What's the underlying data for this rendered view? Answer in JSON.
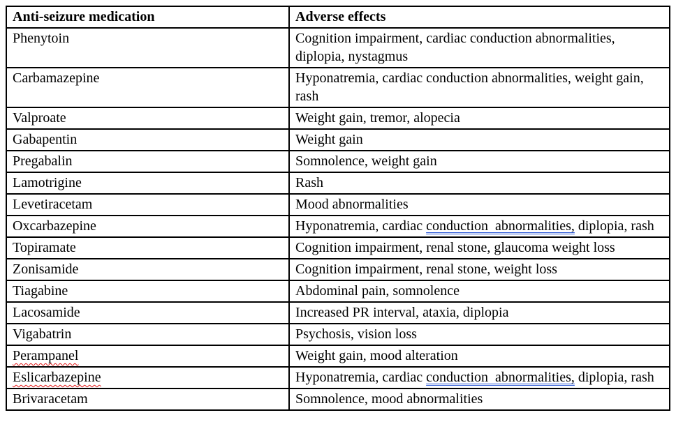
{
  "colors": {
    "background": "#ffffff",
    "text": "#000000",
    "table_border": "#000000",
    "spell_underline": "#e31212",
    "grammar_underline": "#2f5bd7"
  },
  "table": {
    "columns": [
      "Anti-seizure medication",
      "Adverse effects"
    ],
    "rows": [
      {
        "medication": {
          "text": "Phenytoin",
          "spell_error": false
        },
        "effects": [
          {
            "text": "Cognition impairment, cardiac conduction abnormalities, diplopia, nystagmus"
          }
        ]
      },
      {
        "medication": {
          "text": "Carbamazepine",
          "spell_error": false
        },
        "effects": [
          {
            "text": "Hyponatremia, cardiac conduction abnormalities, weight gain, rash"
          }
        ]
      },
      {
        "medication": {
          "text": "Valproate",
          "spell_error": false
        },
        "effects": [
          {
            "text": "Weight gain, tremor, alopecia"
          }
        ]
      },
      {
        "medication": {
          "text": "Gabapentin",
          "spell_error": false
        },
        "effects": [
          {
            "text": "Weight gain"
          }
        ]
      },
      {
        "medication": {
          "text": "Pregabalin",
          "spell_error": false
        },
        "effects": [
          {
            "text": "Somnolence, weight gain"
          }
        ]
      },
      {
        "medication": {
          "text": "Lamotrigine",
          "spell_error": false
        },
        "effects": [
          {
            "text": "Rash"
          }
        ]
      },
      {
        "medication": {
          "text": "Levetiracetam",
          "spell_error": false
        },
        "effects": [
          {
            "text": "Mood abnormalities"
          }
        ]
      },
      {
        "medication": {
          "text": "Oxcarbazepine",
          "spell_error": false
        },
        "effects": [
          {
            "text": "Hyponatremia, cardiac "
          },
          {
            "text": "conduction  abnormalities,",
            "style": "grammar"
          },
          {
            "text": " diplopia, rash"
          }
        ]
      },
      {
        "medication": {
          "text": "Topiramate",
          "spell_error": false
        },
        "effects": [
          {
            "text": "Cognition impairment, renal stone, glaucoma weight loss"
          }
        ]
      },
      {
        "medication": {
          "text": "Zonisamide",
          "spell_error": false
        },
        "effects": [
          {
            "text": "Cognition impairment, renal stone, weight loss"
          }
        ]
      },
      {
        "medication": {
          "text": "Tiagabine",
          "spell_error": false
        },
        "effects": [
          {
            "text": "Abdominal pain, somnolence"
          }
        ]
      },
      {
        "medication": {
          "text": "Lacosamide",
          "spell_error": false
        },
        "effects": [
          {
            "text": "Increased PR interval, ataxia, diplopia"
          }
        ]
      },
      {
        "medication": {
          "text": "Vigabatrin",
          "spell_error": false
        },
        "effects": [
          {
            "text": "Psychosis, vision loss"
          }
        ]
      },
      {
        "medication": {
          "text": "Perampanel",
          "spell_error": true
        },
        "effects": [
          {
            "text": "Weight gain, mood alteration"
          }
        ]
      },
      {
        "medication": {
          "text": "Eslicarbazepine",
          "spell_error": true
        },
        "effects": [
          {
            "text": "Hyponatremia, cardiac "
          },
          {
            "text": "conduction  abnormalities,",
            "style": "grammar"
          },
          {
            "text": " diplopia, rash"
          }
        ]
      },
      {
        "medication": {
          "text": "Brivaracetam",
          "spell_error": false
        },
        "effects": [
          {
            "text": "Somnolence, mood abnormalities"
          }
        ]
      }
    ]
  }
}
